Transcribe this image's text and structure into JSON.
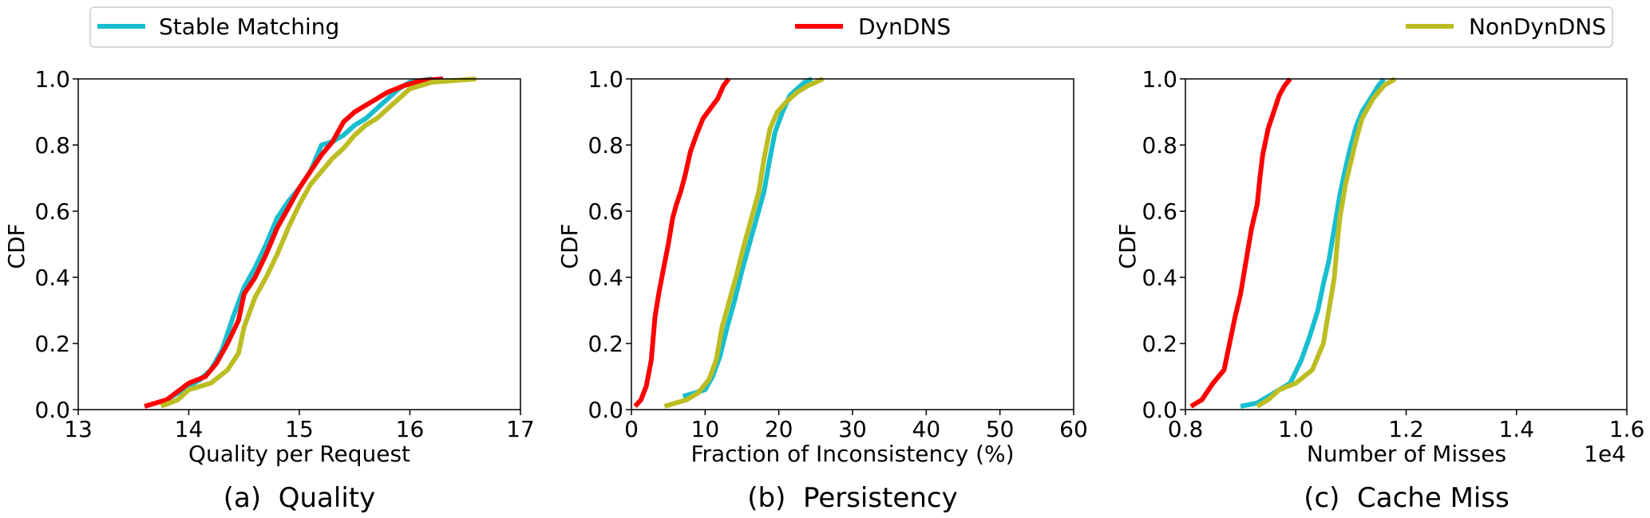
{
  "legend": [
    {
      "label": "Stable Matching",
      "color": "#17becf"
    },
    {
      "label": "DynDNS",
      "color": "#ff0000"
    },
    {
      "label": "NonDynDNS",
      "color": "#bcbd22"
    }
  ],
  "chart_data": [
    {
      "type": "line",
      "caption": "(a)  Quality",
      "xlabel": "Quality per Request",
      "ylabel": "CDF",
      "xlim": [
        13,
        17
      ],
      "ylim": [
        0,
        1
      ],
      "xticks": [
        "13",
        "14",
        "15",
        "16",
        "17"
      ],
      "yticks": [
        "0.0",
        "0.2",
        "0.4",
        "0.6",
        "0.8",
        "1.0"
      ],
      "offset_label": "",
      "series": [
        {
          "name": "Stable Matching",
          "color": "#17becf",
          "x": [
            13.8,
            13.9,
            14.0,
            14.1,
            14.2,
            14.3,
            14.4,
            14.5,
            14.6,
            14.7,
            14.8,
            14.9,
            15.0,
            15.1,
            15.2,
            15.3,
            15.4,
            15.5,
            15.6,
            15.7,
            15.8,
            15.9,
            16.0,
            16.2
          ],
          "y": [
            0.03,
            0.05,
            0.07,
            0.09,
            0.12,
            0.18,
            0.28,
            0.37,
            0.43,
            0.5,
            0.58,
            0.63,
            0.67,
            0.72,
            0.8,
            0.81,
            0.83,
            0.86,
            0.88,
            0.91,
            0.94,
            0.97,
            0.99,
            1.0
          ]
        },
        {
          "name": "DynDNS",
          "color": "#ff0000",
          "x": [
            13.6,
            13.8,
            14.0,
            14.15,
            14.25,
            14.35,
            14.45,
            14.5,
            14.6,
            14.7,
            14.8,
            14.9,
            15.0,
            15.1,
            15.2,
            15.3,
            15.4,
            15.5,
            15.6,
            15.7,
            15.8,
            15.95,
            16.1,
            16.3
          ],
          "y": [
            0.01,
            0.03,
            0.08,
            0.1,
            0.14,
            0.2,
            0.27,
            0.35,
            0.4,
            0.47,
            0.55,
            0.61,
            0.67,
            0.72,
            0.77,
            0.81,
            0.87,
            0.9,
            0.92,
            0.94,
            0.96,
            0.98,
            0.995,
            1.0
          ]
        },
        {
          "name": "NonDynDNS",
          "color": "#bcbd22",
          "x": [
            13.75,
            13.9,
            14.0,
            14.2,
            14.35,
            14.45,
            14.5,
            14.6,
            14.7,
            14.8,
            14.9,
            15.0,
            15.1,
            15.2,
            15.3,
            15.4,
            15.5,
            15.6,
            15.7,
            15.8,
            15.9,
            16.0,
            16.2,
            16.6
          ],
          "y": [
            0.01,
            0.03,
            0.06,
            0.08,
            0.12,
            0.17,
            0.25,
            0.34,
            0.4,
            0.47,
            0.55,
            0.62,
            0.68,
            0.72,
            0.76,
            0.79,
            0.83,
            0.86,
            0.88,
            0.91,
            0.94,
            0.97,
            0.99,
            1.0
          ]
        }
      ]
    },
    {
      "type": "line",
      "caption": "(b)  Persistency",
      "xlabel": "Fraction of Inconsistency (%)",
      "ylabel": "CDF",
      "xlim": [
        0,
        60
      ],
      "ylim": [
        0,
        1
      ],
      "xticks": [
        "0",
        "10",
        "20",
        "30",
        "40",
        "50",
        "60"
      ],
      "yticks": [
        "0.0",
        "0.2",
        "0.4",
        "0.6",
        "0.8",
        "1.0"
      ],
      "offset_label": "",
      "series": [
        {
          "name": "Stable Matching",
          "color": "#17becf",
          "x": [
            7.0,
            8.5,
            10.0,
            11.0,
            12.0,
            13.0,
            14.0,
            15.0,
            16.0,
            17.0,
            18.0,
            18.7,
            19.5,
            20.5,
            21.5,
            22.5,
            23.5,
            24.5
          ],
          "y": [
            0.04,
            0.05,
            0.06,
            0.1,
            0.16,
            0.25,
            0.33,
            0.42,
            0.5,
            0.58,
            0.66,
            0.75,
            0.84,
            0.9,
            0.95,
            0.97,
            0.99,
            1.0
          ]
        },
        {
          "name": "DynDNS",
          "color": "#ff0000",
          "x": [
            0.5,
            1.3,
            2.0,
            2.7,
            3.2,
            3.7,
            4.3,
            5.0,
            5.6,
            6.1,
            6.7,
            7.3,
            8.0,
            8.8,
            9.7,
            10.7,
            11.7,
            12.5,
            13.2
          ],
          "y": [
            0.01,
            0.03,
            0.07,
            0.15,
            0.28,
            0.35,
            0.42,
            0.5,
            0.58,
            0.62,
            0.66,
            0.71,
            0.78,
            0.83,
            0.88,
            0.91,
            0.94,
            0.98,
            1.0
          ]
        },
        {
          "name": "NonDynDNS",
          "color": "#bcbd22",
          "x": [
            4.5,
            6.0,
            7.5,
            9.0,
            10.5,
            11.5,
            12.3,
            13.3,
            14.3,
            15.3,
            16.3,
            17.3,
            18.0,
            18.8,
            19.8,
            21.0,
            22.5,
            24.0,
            26.0
          ],
          "y": [
            0.01,
            0.02,
            0.03,
            0.05,
            0.09,
            0.15,
            0.25,
            0.33,
            0.41,
            0.5,
            0.58,
            0.66,
            0.76,
            0.85,
            0.9,
            0.93,
            0.96,
            0.98,
            1.0
          ]
        }
      ]
    },
    {
      "type": "line",
      "caption": "(c)  Cache Miss",
      "xlabel": "Number of Misses",
      "ylabel": "CDF",
      "xlim": [
        0.8,
        1.6
      ],
      "ylim": [
        0,
        1
      ],
      "xticks": [
        "0.8",
        "1.0",
        "1.2",
        "1.4",
        "1.6"
      ],
      "yticks": [
        "0.0",
        "0.2",
        "0.4",
        "0.6",
        "0.8",
        "1.0"
      ],
      "offset_label": "1e4",
      "series": [
        {
          "name": "Stable Matching",
          "color": "#17becf",
          "x": [
            0.9,
            0.93,
            0.95,
            0.97,
            0.99,
            1.01,
            1.025,
            1.04,
            1.05,
            1.06,
            1.07,
            1.08,
            1.09,
            1.1,
            1.11,
            1.12,
            1.135,
            1.15,
            1.16
          ],
          "y": [
            0.01,
            0.02,
            0.04,
            0.06,
            0.08,
            0.15,
            0.22,
            0.3,
            0.38,
            0.45,
            0.55,
            0.65,
            0.73,
            0.8,
            0.86,
            0.9,
            0.94,
            0.98,
            1.0
          ]
        },
        {
          "name": "DynDNS",
          "color": "#ff0000",
          "x": [
            0.81,
            0.83,
            0.85,
            0.87,
            0.88,
            0.89,
            0.9,
            0.91,
            0.92,
            0.93,
            0.935,
            0.94,
            0.95,
            0.96,
            0.97,
            0.98,
            0.99
          ],
          "y": [
            0.01,
            0.03,
            0.08,
            0.12,
            0.2,
            0.28,
            0.35,
            0.45,
            0.55,
            0.62,
            0.7,
            0.77,
            0.85,
            0.9,
            0.95,
            0.98,
            1.0
          ]
        },
        {
          "name": "NonDynDNS",
          "color": "#bcbd22",
          "x": [
            0.93,
            0.95,
            0.97,
            1.0,
            1.03,
            1.05,
            1.06,
            1.07,
            1.075,
            1.08,
            1.09,
            1.1,
            1.11,
            1.12,
            1.14,
            1.16,
            1.18
          ],
          "y": [
            0.01,
            0.03,
            0.06,
            0.08,
            0.12,
            0.2,
            0.3,
            0.4,
            0.5,
            0.58,
            0.68,
            0.75,
            0.82,
            0.88,
            0.94,
            0.98,
            1.0
          ]
        }
      ]
    }
  ]
}
